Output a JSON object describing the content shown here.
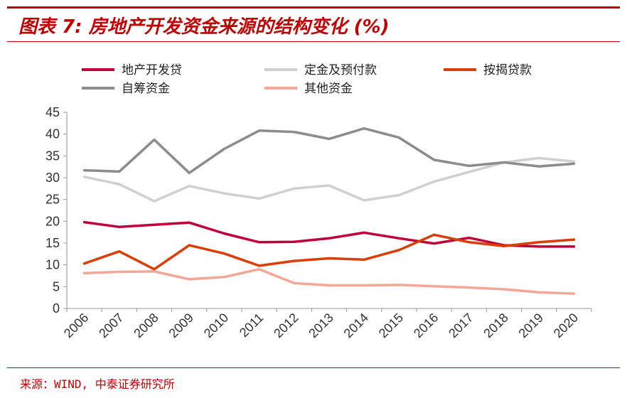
{
  "header": {
    "title": "图表 7: 房地产开发资金来源的结构变化 (%)"
  },
  "footer": {
    "source": "来源：WIND, 中泰证券研究所"
  },
  "colors": {
    "accent": "#c00000"
  },
  "chart_data": {
    "type": "line",
    "title": "房地产开发资金来源的结构变化 (%)",
    "xlabel": "",
    "ylabel": "",
    "ylim": [
      0,
      45
    ],
    "yticks": [
      "0",
      "5",
      "10",
      "15",
      "20",
      "25",
      "30",
      "35",
      "40",
      "45"
    ],
    "categories": [
      "2006",
      "2007",
      "2008",
      "2009",
      "2010",
      "2011",
      "2012",
      "2013",
      "2014",
      "2015",
      "2016",
      "2017",
      "2018",
      "2019",
      "2020"
    ],
    "legend_position": "top",
    "grid": false,
    "series": [
      {
        "name": "地产开发贷",
        "color": "#c0003a",
        "values": [
          19.8,
          18.7,
          19.2,
          19.7,
          17.2,
          15.2,
          15.3,
          16.1,
          17.4,
          16.1,
          14.9,
          16.2,
          14.5,
          14.2,
          14.2
        ]
      },
      {
        "name": "定金及预付款",
        "color": "#d0d0d0",
        "values": [
          30.2,
          28.5,
          24.6,
          28.1,
          26.4,
          25.2,
          27.5,
          28.2,
          24.8,
          26.0,
          29.1,
          31.3,
          33.5,
          34.5,
          33.7
        ]
      },
      {
        "name": "按揭贷款",
        "color": "#d93e06",
        "values": [
          10.3,
          13.1,
          9.0,
          14.5,
          12.6,
          9.8,
          10.9,
          11.5,
          11.2,
          13.4,
          16.9,
          15.2,
          14.3,
          15.2,
          15.8
        ]
      },
      {
        "name": "自筹资金",
        "color": "#8c8c8c",
        "values": [
          31.7,
          31.4,
          38.7,
          31.1,
          36.6,
          40.8,
          40.5,
          38.9,
          41.3,
          39.2,
          34.1,
          32.7,
          33.5,
          32.6,
          33.2
        ]
      },
      {
        "name": "其他资金",
        "color": "#f4a796",
        "values": [
          8.1,
          8.4,
          8.5,
          6.7,
          7.2,
          9.0,
          5.8,
          5.3,
          5.3,
          5.4,
          5.1,
          4.8,
          4.4,
          3.7,
          3.4
        ]
      }
    ]
  }
}
